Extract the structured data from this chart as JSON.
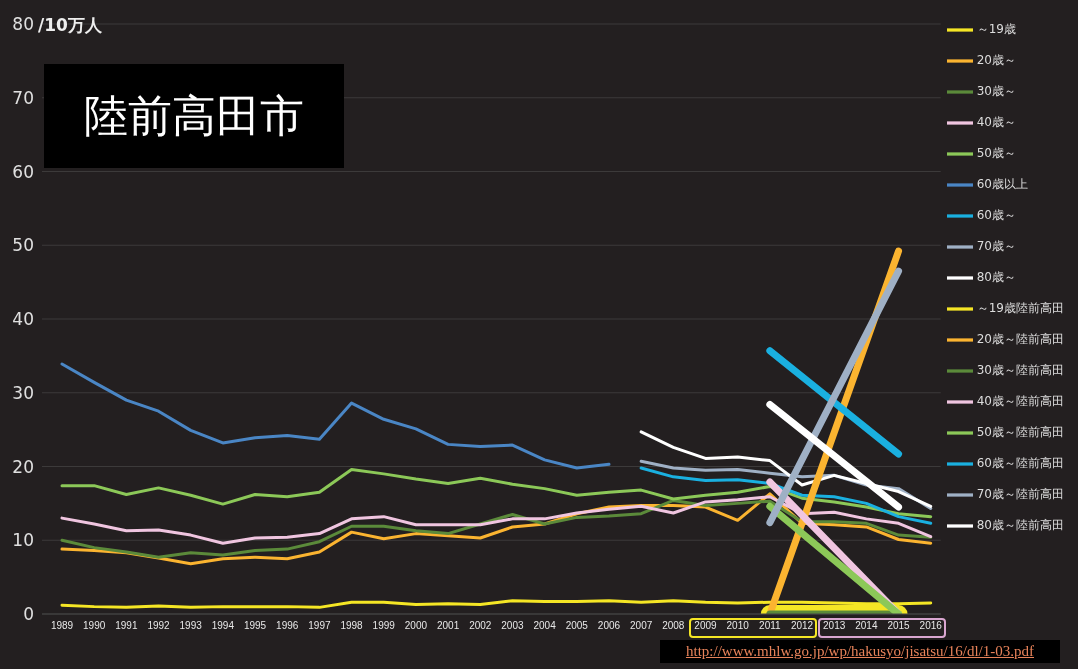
{
  "chart_data": {
    "type": "line",
    "ylabel": "/10万人",
    "annotations": [
      "陸前高田市",
      "http://www.mhlw.go.jp/wp/hakusyo/jisatsu/16/dl/1-03.pdf"
    ],
    "categories": [
      "1989",
      "1990",
      "1991",
      "1992",
      "1993",
      "1994",
      "1995",
      "1996",
      "1997",
      "1998",
      "1999",
      "2000",
      "2001",
      "2002",
      "2003",
      "2004",
      "2005",
      "2006",
      "2007",
      "2008",
      "2009",
      "2010",
      "2011",
      "2012",
      "2013",
      "2014",
      "2015",
      "2016"
    ],
    "ylim": [
      0,
      80
    ],
    "yticks": [
      0,
      10,
      20,
      30,
      40,
      50,
      60,
      70,
      80
    ],
    "grid": "y",
    "legend": "right",
    "marker": "none",
    "line_style": "solid",
    "series": [
      {
        "name": "～19歳",
        "color": "#f5e625",
        "values": [
          1.2,
          1.0,
          0.9,
          1.1,
          0.9,
          1.0,
          1.0,
          1.0,
          0.9,
          1.6,
          1.6,
          1.3,
          1.4,
          1.3,
          1.8,
          1.7,
          1.7,
          1.8,
          1.6,
          1.8,
          1.6,
          1.5,
          1.6,
          1.6,
          1.5,
          1.4,
          1.4,
          1.5
        ]
      },
      {
        "name": "20歳～",
        "color": "#fbb430",
        "values": [
          8.8,
          8.6,
          8.3,
          7.6,
          6.8,
          7.5,
          7.7,
          7.5,
          8.4,
          11.1,
          10.2,
          10.9,
          10.6,
          10.3,
          11.8,
          12.2,
          13.6,
          14.5,
          14.7,
          14.7,
          14.5,
          12.7,
          16.3,
          12.3,
          12.1,
          11.8,
          10.1,
          9.6
        ]
      },
      {
        "name": "30歳～",
        "color": "#5b8a3a",
        "values": [
          10.0,
          9.0,
          8.4,
          7.7,
          8.3,
          8.0,
          8.6,
          8.8,
          9.8,
          11.9,
          11.9,
          11.3,
          10.9,
          12.2,
          13.5,
          12.2,
          13.1,
          13.3,
          13.6,
          15.4,
          14.7,
          15.0,
          15.3,
          12.5,
          12.5,
          12.3,
          10.7,
          10.4
        ]
      },
      {
        "name": "40歳～",
        "color": "#f0c5e0",
        "values": [
          13.0,
          12.2,
          11.3,
          11.4,
          10.7,
          9.6,
          10.3,
          10.4,
          10.9,
          12.9,
          13.2,
          12.1,
          12.1,
          12.1,
          12.9,
          12.9,
          13.7,
          14.2,
          14.6,
          13.7,
          15.2,
          15.5,
          15.9,
          13.6,
          13.8,
          12.9,
          12.3,
          10.5
        ]
      },
      {
        "name": "50歳～",
        "color": "#8cc858",
        "values": [
          17.4,
          17.4,
          16.2,
          17.1,
          16.1,
          14.9,
          16.2,
          15.9,
          16.5,
          19.6,
          19.0,
          18.3,
          17.7,
          18.4,
          17.6,
          17.0,
          16.1,
          16.5,
          16.8,
          15.6,
          16.1,
          16.5,
          17.3,
          15.7,
          15.2,
          14.5,
          13.6,
          13.2
        ]
      },
      {
        "name": "60歳以上",
        "color": "#4a86c5",
        "values": [
          33.9,
          31.4,
          29.0,
          27.5,
          24.9,
          23.2,
          23.9,
          24.2,
          23.7,
          28.6,
          26.4,
          25.1,
          23.0,
          22.7,
          22.9,
          20.9,
          19.8,
          20.3,
          null,
          null,
          null,
          null,
          null,
          null,
          null,
          null,
          null,
          null
        ]
      },
      {
        "name": "60歳～",
        "color": "#1ab0e0",
        "values": [
          null,
          null,
          null,
          null,
          null,
          null,
          null,
          null,
          null,
          null,
          null,
          null,
          null,
          null,
          null,
          null,
          null,
          null,
          19.8,
          18.6,
          18.1,
          18.2,
          17.7,
          16.1,
          15.9,
          15.0,
          13.2,
          12.3
        ]
      },
      {
        "name": "70歳～",
        "color": "#9fb0c5",
        "values": [
          null,
          null,
          null,
          null,
          null,
          null,
          null,
          null,
          null,
          null,
          null,
          null,
          null,
          null,
          null,
          null,
          null,
          null,
          20.7,
          19.8,
          19.5,
          19.6,
          19.1,
          18.6,
          18.8,
          17.5,
          17.0,
          14.3
        ]
      },
      {
        "name": "80歳～",
        "color": "#ffffff",
        "values": [
          null,
          null,
          null,
          null,
          null,
          null,
          null,
          null,
          null,
          null,
          null,
          null,
          null,
          null,
          null,
          null,
          null,
          null,
          24.7,
          22.6,
          21.1,
          21.3,
          20.8,
          17.5,
          18.8,
          17.7,
          16.6,
          14.6
        ]
      },
      {
        "name": "～19歳陸前高田",
        "color": "#f5e625",
        "values": [
          null,
          null,
          null,
          null,
          null,
          null,
          null,
          null,
          null,
          null,
          null,
          null,
          null,
          null,
          null,
          null,
          null,
          null,
          null,
          null,
          null,
          null,
          0,
          null,
          null,
          null,
          0,
          null
        ]
      },
      {
        "name": "20歳～陸前高田",
        "color": "#fbb430",
        "values": [
          null,
          null,
          null,
          null,
          null,
          null,
          null,
          null,
          null,
          null,
          null,
          null,
          null,
          null,
          null,
          null,
          null,
          null,
          null,
          null,
          null,
          null,
          0,
          null,
          null,
          null,
          49.2,
          null
        ]
      },
      {
        "name": "30歳～陸前高田",
        "color": "#5b8a3a",
        "values": [
          null,
          null,
          null,
          null,
          null,
          null,
          null,
          null,
          null,
          null,
          null,
          null,
          null,
          null,
          null,
          null,
          null,
          null,
          null,
          null,
          null,
          null,
          0,
          null,
          null,
          null,
          0,
          null
        ]
      },
      {
        "name": "40歳～陸前高田",
        "color": "#f0c5e0",
        "values": [
          null,
          null,
          null,
          null,
          null,
          null,
          null,
          null,
          null,
          null,
          null,
          null,
          null,
          null,
          null,
          null,
          null,
          null,
          null,
          null,
          null,
          null,
          17.9,
          null,
          null,
          null,
          0,
          null
        ]
      },
      {
        "name": "50歳～陸前高田",
        "color": "#8cc858",
        "values": [
          null,
          null,
          null,
          null,
          null,
          null,
          null,
          null,
          null,
          null,
          null,
          null,
          null,
          null,
          null,
          null,
          null,
          null,
          null,
          null,
          null,
          null,
          14.6,
          null,
          null,
          null,
          0,
          null
        ]
      },
      {
        "name": "60歳～陸前高田",
        "color": "#1ab0e0",
        "values": [
          null,
          null,
          null,
          null,
          null,
          null,
          null,
          null,
          null,
          null,
          null,
          null,
          null,
          null,
          null,
          null,
          null,
          null,
          null,
          null,
          null,
          null,
          35.7,
          null,
          null,
          null,
          21.7,
          null
        ]
      },
      {
        "name": "70歳～陸前高田",
        "color": "#9fb0c5",
        "values": [
          null,
          null,
          null,
          null,
          null,
          null,
          null,
          null,
          null,
          null,
          null,
          null,
          null,
          null,
          null,
          null,
          null,
          null,
          null,
          null,
          null,
          null,
          12.4,
          null,
          null,
          null,
          46.5,
          null
        ]
      },
      {
        "name": "80歳～陸前高田",
        "color": "#ffffff",
        "values": [
          null,
          null,
          null,
          null,
          null,
          null,
          null,
          null,
          null,
          null,
          null,
          null,
          null,
          null,
          null,
          null,
          null,
          null,
          null,
          null,
          null,
          null,
          28.4,
          null,
          null,
          null,
          14.5,
          null
        ]
      }
    ]
  }
}
